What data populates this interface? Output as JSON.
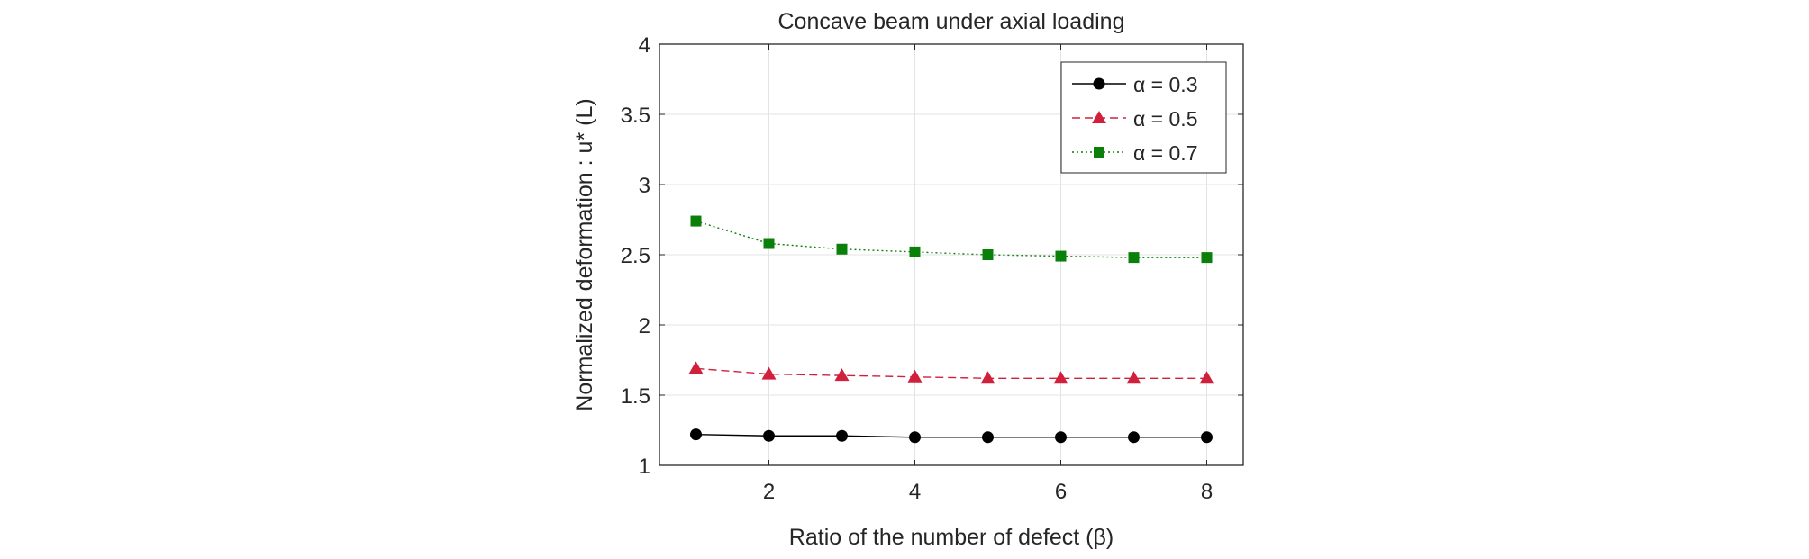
{
  "chart_data": {
    "type": "line",
    "title": "Concave beam under axial loading",
    "xlabel": "Ratio of the number of defect (β)",
    "ylabel": "Normalized deformation : u* (L)",
    "xlim": [
      0.5,
      8.5
    ],
    "ylim": [
      1,
      4
    ],
    "xticks": [
      "2",
      "4",
      "6",
      "8"
    ],
    "yticks": [
      "1",
      "1.5",
      "2",
      "2.5",
      "3",
      "3.5",
      "4"
    ],
    "grid": true,
    "legend_position": "top-right",
    "x": [
      1,
      2,
      3,
      4,
      5,
      6,
      7,
      8
    ],
    "series": [
      {
        "name": "α = 0.3",
        "color": "#000000",
        "marker": "circle",
        "line": "solid",
        "values": [
          1.22,
          1.21,
          1.21,
          1.2,
          1.2,
          1.2,
          1.2,
          1.2
        ]
      },
      {
        "name": "α = 0.5",
        "color": "#d0203c",
        "marker": "triangle",
        "line": "dashed",
        "values": [
          1.69,
          1.65,
          1.64,
          1.63,
          1.62,
          1.62,
          1.62,
          1.62
        ]
      },
      {
        "name": "α = 0.7",
        "color": "#0a7f0a",
        "marker": "square",
        "line": "dotted",
        "values": [
          2.74,
          2.58,
          2.54,
          2.52,
          2.5,
          2.49,
          2.48,
          2.48
        ]
      }
    ]
  }
}
